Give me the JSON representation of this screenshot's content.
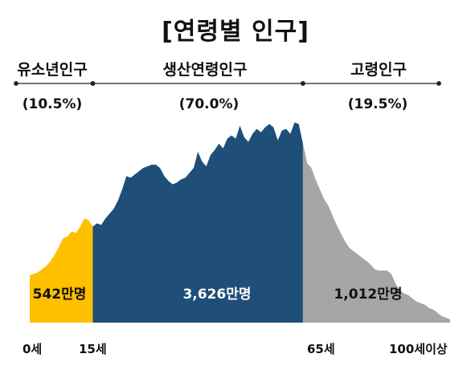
{
  "chart_data": {
    "type": "area",
    "title": "[연령별 인구]",
    "x_ticks": [
      "0세",
      "15세",
      "65세",
      "100세이상"
    ],
    "groups": [
      {
        "name": "유소년인구",
        "share": "(10.5%)",
        "total": "542만명",
        "color": "#FFC000",
        "age_from": 0,
        "age_to": 15
      },
      {
        "name": "생산연령인구",
        "share": "(70.0%)",
        "total": "3,626만명",
        "color": "#1F4E79",
        "age_from": 15,
        "age_to": 65
      },
      {
        "name": "고령인구",
        "share": "(19.5%)",
        "total": "1,012만명",
        "color": "#A6A6A6",
        "age_from": 65,
        "age_to": 100
      }
    ],
    "ages": [
      0,
      1,
      2,
      3,
      4,
      5,
      6,
      7,
      8,
      9,
      10,
      11,
      12,
      13,
      14,
      15,
      16,
      17,
      18,
      19,
      20,
      21,
      22,
      23,
      24,
      25,
      26,
      27,
      28,
      29,
      30,
      31,
      32,
      33,
      34,
      35,
      36,
      37,
      38,
      39,
      40,
      41,
      42,
      43,
      44,
      45,
      46,
      47,
      48,
      49,
      50,
      51,
      52,
      53,
      54,
      55,
      56,
      57,
      58,
      59,
      60,
      61,
      62,
      63,
      64,
      65,
      66,
      67,
      68,
      69,
      70,
      71,
      72,
      73,
      74,
      75,
      76,
      77,
      78,
      79,
      80,
      81,
      82,
      83,
      84,
      85,
      86,
      87,
      88,
      89,
      90,
      91,
      92,
      93,
      94,
      95,
      96,
      97,
      98,
      99,
      100
    ],
    "values": [
      29,
      30,
      31,
      33,
      35,
      38,
      42,
      47,
      52,
      53,
      56,
      55,
      59,
      64,
      63,
      59,
      61,
      60,
      64,
      67,
      70,
      75,
      82,
      90,
      89,
      91,
      93,
      95,
      96,
      97,
      97,
      95,
      90,
      87,
      85,
      86,
      88,
      89,
      92,
      95,
      105,
      99,
      96,
      103,
      106,
      110,
      107,
      113,
      115,
      113,
      121,
      114,
      111,
      116,
      119,
      117,
      120,
      122,
      120,
      112,
      118,
      119,
      116,
      123,
      122,
      110,
      98,
      95,
      88,
      82,
      76,
      72,
      66,
      60,
      55,
      50,
      46,
      44,
      42,
      40,
      38,
      36,
      33,
      32,
      32,
      32,
      30,
      24,
      20,
      18,
      17,
      15,
      13,
      12,
      11,
      9,
      8,
      6,
      4,
      3,
      2
    ],
    "ylim": [
      0,
      140
    ]
  }
}
